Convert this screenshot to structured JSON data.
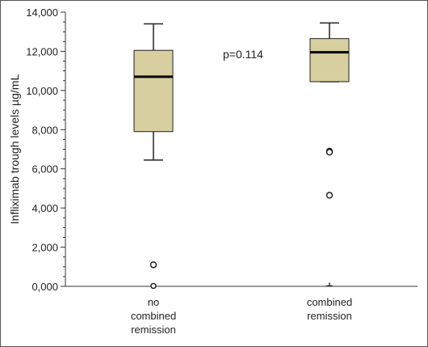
{
  "chart_data": {
    "type": "boxplot",
    "ylabel": "Infliximab trough levels µg/mL",
    "ylim": [
      0,
      14000
    ],
    "yticks": [
      0,
      2000,
      4000,
      6000,
      8000,
      10000,
      12000,
      14000
    ],
    "ytick_labels": [
      "0,000",
      "2,000",
      "4,000",
      "6,000",
      "8,000",
      "10,000",
      "12,000",
      "14,000"
    ],
    "grid": false,
    "box_color": "#d8cfa0",
    "categories": [
      {
        "label_lines": [
          "no",
          "combined",
          "remission"
        ],
        "whisker_low": 6450,
        "q1": 7900,
        "median": 10700,
        "q3": 12050,
        "whisker_high": 13400,
        "outliers": [
          1100
        ],
        "extremes": [
          20
        ]
      },
      {
        "label_lines": [
          "combined",
          "remission"
        ],
        "whisker_low": 10450,
        "q1": 10450,
        "median": 11950,
        "q3": 12650,
        "whisker_high": 13450,
        "outliers": [
          6900,
          6850,
          4650
        ],
        "extremes": [
          20
        ]
      }
    ],
    "annotation": "p=0.114"
  }
}
